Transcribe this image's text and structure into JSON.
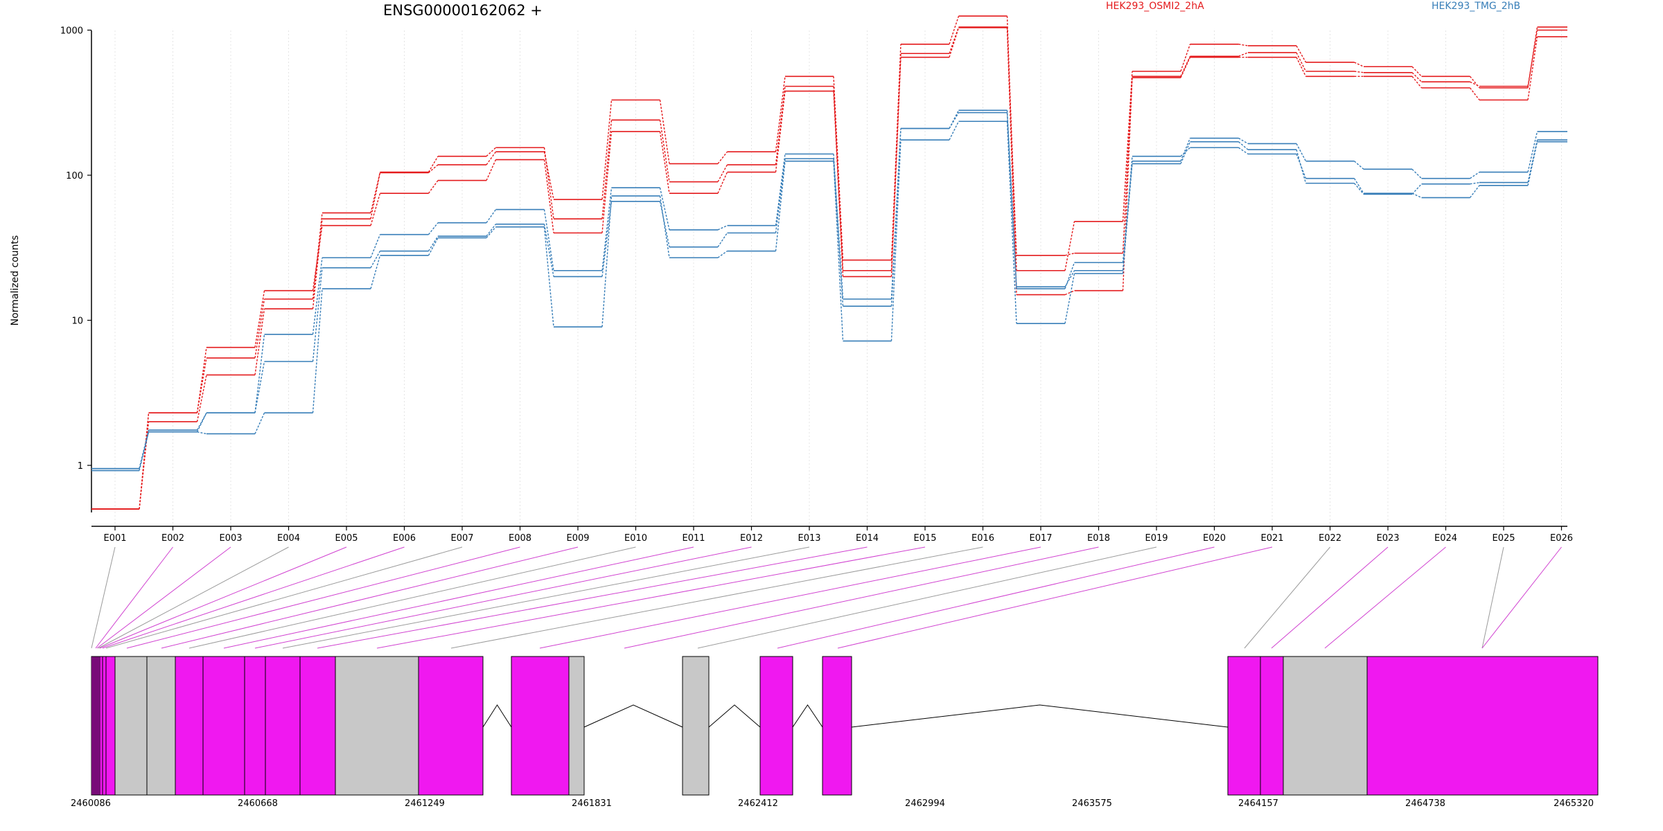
{
  "chart_data": {
    "type": "line",
    "title": "ENSG00000162062 +",
    "ylabel": "Normalized counts",
    "xlabel": "",
    "y_scale": "log",
    "y_ticks": [
      {
        "label": "1",
        "value": 1
      },
      {
        "label": "10",
        "value": 10
      },
      {
        "label": "100",
        "value": 100
      },
      {
        "label": "1000",
        "value": 1000
      }
    ],
    "ylim": [
      0.5,
      1750
    ],
    "categories": [
      "E001",
      "E002",
      "E003",
      "E004",
      "E005",
      "E006",
      "E007",
      "E008",
      "E009",
      "E010",
      "E011",
      "E012",
      "E013",
      "E014",
      "E015",
      "E016",
      "E017",
      "E018",
      "E019",
      "E020",
      "E021",
      "E022",
      "E023",
      "E024",
      "E025",
      "E026"
    ],
    "legend": [
      {
        "name": "HEK293_OSMI2_2hA",
        "color": "#E41A1C"
      },
      {
        "name": "HEK293_TMG_2hB",
        "color": "#377EB8"
      }
    ],
    "series": [
      {
        "group": 0,
        "values": [
          0.5,
          2.3,
          5.5,
          14,
          55,
          105,
          135,
          155,
          50,
          240,
          90,
          118,
          410,
          22,
          690,
          1050,
          28,
          29,
          480,
          660,
          700,
          520,
          510,
          440,
          410,
          1000
        ]
      },
      {
        "group": 0,
        "values": [
          0.5,
          2.0,
          4.2,
          12,
          50,
          104,
          118,
          145,
          68,
          330,
          120,
          145,
          480,
          26,
          800,
          1250,
          22,
          48,
          520,
          800,
          780,
          600,
          560,
          480,
          400,
          1050
        ]
      },
      {
        "group": 0,
        "values": [
          0.5,
          2.3,
          6.5,
          16,
          45,
          75,
          92,
          128,
          40,
          200,
          75,
          105,
          380,
          20,
          650,
          1040,
          15,
          16,
          470,
          650,
          650,
          480,
          480,
          400,
          330,
          900
        ]
      },
      {
        "group": 1,
        "values": [
          0.95,
          1.7,
          2.3,
          5.2,
          23,
          30,
          38,
          46,
          20,
          66,
          32,
          40,
          130,
          12.5,
          210,
          270,
          17,
          22,
          120,
          170,
          150,
          88,
          74,
          87,
          89,
          175
        ]
      },
      {
        "group": 1,
        "values": [
          0.95,
          1.75,
          2.3,
          8,
          27,
          39,
          47,
          58,
          22,
          82,
          42,
          45,
          140,
          14,
          210,
          280,
          16.5,
          25,
          125,
          180,
          165,
          125,
          110,
          95,
          105,
          200
        ]
      },
      {
        "group": 1,
        "values": [
          0.92,
          1.7,
          1.65,
          2.3,
          16.5,
          28,
          37,
          44,
          9,
          72,
          27,
          30,
          125,
          7.2,
          175,
          235,
          9.5,
          21,
          135,
          155,
          140,
          95,
          75,
          70,
          85,
          170
        ]
      }
    ],
    "gene_model": {
      "coordinate_ticks": [
        "2460086",
        "2460668",
        "2461249",
        "2461831",
        "2462412",
        "2462994",
        "2463575",
        "2464157",
        "2464738",
        "2465320"
      ],
      "exon_colors": {
        "differential": "#F018F0",
        "other": "#C8C8C8"
      }
    }
  }
}
